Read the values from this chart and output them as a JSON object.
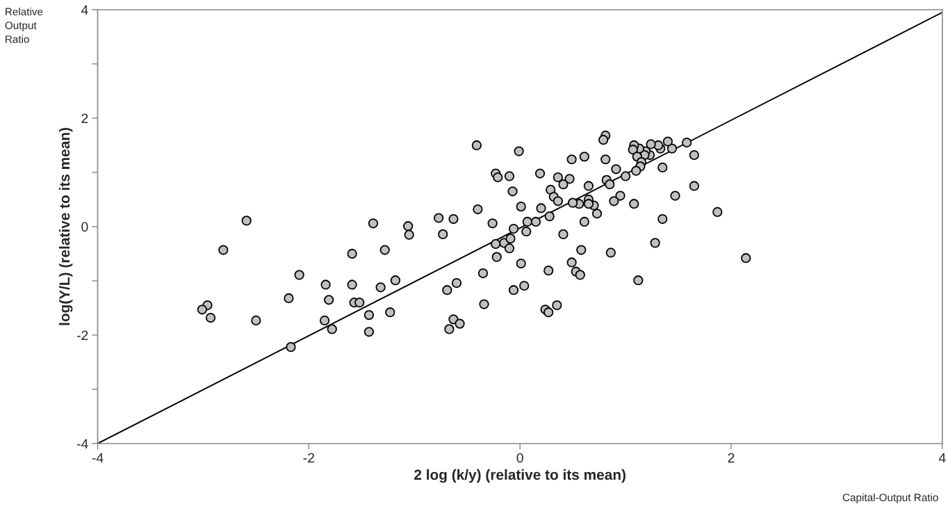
{
  "chart_data": {
    "type": "scatter",
    "xlabel": "2 log (k/y) (relative to its mean)",
    "ylabel": "log(Y/L) (relative to its mean)",
    "annotations": [
      "Relative Output Ratio",
      "Capital-Output Ratio"
    ],
    "xlim": [
      -4,
      4
    ],
    "ylim": [
      -4,
      4
    ],
    "xticks": [
      -4,
      -2,
      0,
      2,
      4
    ],
    "yticks": [
      -4,
      {
        "value": -3,
        "label": null
      },
      -2,
      {
        "value": -1,
        "label": null
      },
      0,
      {
        "value": 1,
        "label": null
      },
      2,
      {
        "value": 3,
        "label": null
      },
      4
    ],
    "grid": false,
    "legend": false,
    "marker": "circle",
    "series": [
      {
        "color": "#c0c0c0",
        "x": [
          -0.41,
          -0.23,
          -0.21,
          -0.1,
          -0.07,
          -0.4,
          -0.26,
          -0.06,
          -0.23,
          -0.15,
          -0.09,
          -0.1,
          -0.22,
          -0.35,
          -0.6,
          -0.69,
          -0.06,
          -0.34,
          -0.63,
          -0.57,
          -0.67,
          -0.77,
          -0.63,
          -0.73,
          -1.06,
          -1.05,
          -1.39,
          -1.28,
          -1.59,
          -1.18,
          -1.32,
          -1.59,
          -1.57,
          -1.52,
          -1.43,
          -1.23,
          -1.43,
          -1.84,
          -1.81,
          -1.85,
          -1.78,
          -2.09,
          -2.19,
          -2.17,
          -2.5,
          -2.59,
          -2.81,
          -2.96,
          -3.01,
          -2.93,
          -0.01,
          0.01,
          0.01,
          0.2,
          0.19,
          0.07,
          0.15,
          0.06,
          0.28,
          0.41,
          0.04,
          0.27,
          0.24,
          0.27,
          0.35,
          0.49,
          0.53,
          0.57,
          0.58,
          0.61,
          0.86,
          1.12,
          1.28,
          1.35,
          1.87,
          2.14,
          1.65,
          1.47,
          1.65,
          1.58,
          1.44,
          1.4,
          1.33,
          1.31,
          1.24,
          1.23,
          1.19,
          1.18,
          1.13,
          1.08,
          1.07,
          1.11,
          1.15,
          1.14,
          1.1,
          1.35,
          1.08,
          1.0,
          0.95,
          0.89,
          0.91,
          0.81,
          0.79,
          0.81,
          0.82,
          0.85,
          0.73,
          0.7,
          0.65,
          0.65,
          0.56,
          0.5,
          0.65,
          0.61,
          0.49,
          0.47,
          0.36,
          0.41,
          0.29,
          0.32,
          0.36
        ],
        "values": [
          1.5,
          0.98,
          0.91,
          0.93,
          0.65,
          0.32,
          0.06,
          -0.04,
          -0.32,
          -0.3,
          -0.22,
          -0.4,
          -0.56,
          -0.86,
          -1.04,
          -1.17,
          -1.17,
          -1.43,
          -1.71,
          -1.79,
          -1.89,
          0.16,
          0.14,
          -0.14,
          0.01,
          -0.15,
          0.06,
          -0.43,
          -0.5,
          -0.99,
          -1.12,
          -1.07,
          -1.4,
          -1.4,
          -1.63,
          -1.58,
          -1.94,
          -1.07,
          -1.35,
          -1.73,
          -1.89,
          -0.89,
          -1.32,
          -2.22,
          -1.73,
          0.11,
          -0.43,
          -1.45,
          -1.53,
          -1.68,
          1.39,
          0.37,
          -0.68,
          0.34,
          0.98,
          0.09,
          0.09,
          -0.09,
          0.19,
          -0.14,
          -1.09,
          -0.81,
          -1.53,
          -1.58,
          -1.45,
          -0.66,
          -0.83,
          -0.89,
          -0.43,
          0.09,
          -0.48,
          -0.99,
          -0.3,
          0.14,
          0.27,
          -0.58,
          0.75,
          0.57,
          1.32,
          1.55,
          1.44,
          1.57,
          1.44,
          1.5,
          1.52,
          1.32,
          1.39,
          1.32,
          1.44,
          1.5,
          1.42,
          1.29,
          1.19,
          1.11,
          1.03,
          1.09,
          0.42,
          0.93,
          0.57,
          0.47,
          1.06,
          1.68,
          1.6,
          1.24,
          0.86,
          0.78,
          0.24,
          0.39,
          0.5,
          0.42,
          0.42,
          0.44,
          0.75,
          1.29,
          1.24,
          0.88,
          0.91,
          0.78,
          0.68,
          0.55,
          0.47
        ]
      },
      {
        "type": "line",
        "marker": "none",
        "color": "#000000",
        "x": [
          -4,
          4
        ],
        "values": [
          -4,
          3.95
        ]
      }
    ]
  }
}
